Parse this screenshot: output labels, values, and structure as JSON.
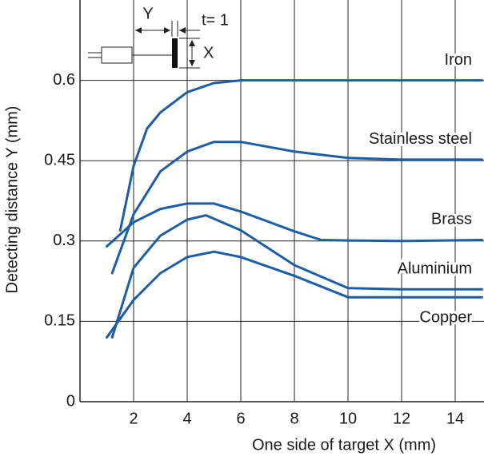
{
  "chart_data": {
    "type": "line",
    "x_label": "One side of target X (mm)",
    "y_label": "Detecting distance Y (mm)",
    "annotations": [
      "Y",
      "t= 1",
      "X"
    ],
    "xlim": [
      0,
      15
    ],
    "ylim": [
      0,
      0.75
    ],
    "xticks": [
      2,
      4,
      6,
      8,
      10,
      12,
      14
    ],
    "yticks": [
      0,
      0.15,
      0.3,
      0.45,
      0.6
    ],
    "grid": true,
    "color": "#1c5ea6",
    "series": [
      {
        "name": "Iron",
        "x": [
          1.5,
          2,
          2.5,
          3,
          4,
          5,
          6,
          8,
          10,
          12,
          15
        ],
        "values": [
          0.32,
          0.44,
          0.51,
          0.54,
          0.578,
          0.595,
          0.6,
          0.6,
          0.6,
          0.6,
          0.6
        ]
      },
      {
        "name": "Stainless steel",
        "x": [
          1.2,
          2,
          3,
          4,
          5,
          6,
          8,
          10,
          12,
          15
        ],
        "values": [
          0.24,
          0.35,
          0.43,
          0.467,
          0.485,
          0.485,
          0.467,
          0.455,
          0.452,
          0.452
        ]
      },
      {
        "name": "Brass",
        "x": [
          1,
          2,
          3,
          4,
          5,
          6,
          8,
          9,
          10,
          12,
          15
        ],
        "values": [
          0.29,
          0.335,
          0.36,
          0.37,
          0.37,
          0.355,
          0.318,
          0.302,
          0.301,
          0.3,
          0.302
        ]
      },
      {
        "name": "Aluminium",
        "x": [
          1.2,
          2,
          3,
          4,
          4.7,
          6,
          8,
          10,
          12,
          15
        ],
        "values": [
          0.12,
          0.25,
          0.31,
          0.34,
          0.348,
          0.32,
          0.255,
          0.212,
          0.21,
          0.21
        ]
      },
      {
        "name": "Copper",
        "x": [
          1,
          2,
          3,
          4,
          5,
          6,
          8,
          10,
          12,
          15
        ],
        "values": [
          0.12,
          0.19,
          0.24,
          0.27,
          0.28,
          0.27,
          0.235,
          0.195,
          0.195,
          0.195
        ]
      }
    ]
  }
}
